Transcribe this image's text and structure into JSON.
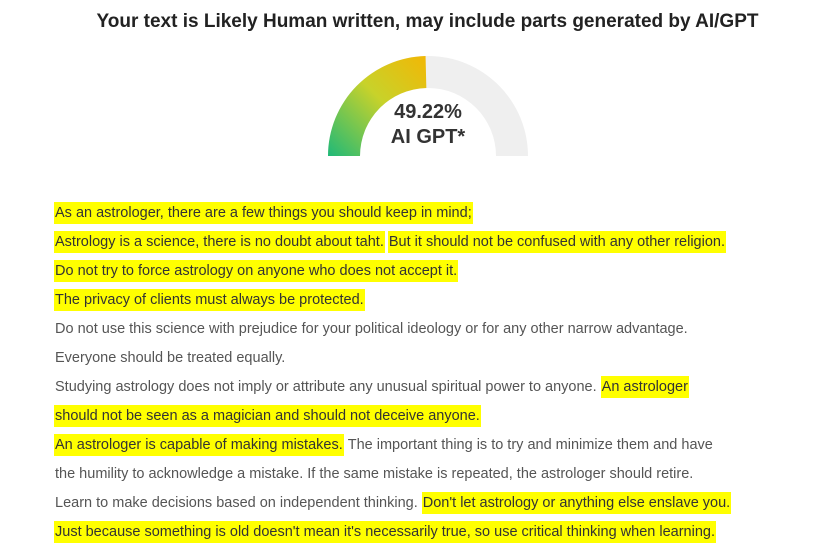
{
  "header": {
    "title": "Your text is Likely Human written, may include parts generated by AI/GPT"
  },
  "gauge": {
    "value": 49.22,
    "label": "49.22%",
    "caption": "AI GPT*",
    "range": [
      0,
      100
    ]
  },
  "lines": [
    [
      {
        "text": "As an astrologer, there are a few things you should keep in mind;",
        "highlighted": true
      }
    ],
    [
      {
        "text": "Astrology is a science, there is no doubt about taht.",
        "highlighted": true
      },
      {
        "text": "But it should not be confused with any other religion.",
        "highlighted": true
      }
    ],
    [
      {
        "text": "Do not try to force astrology on anyone who does not accept it.",
        "highlighted": true
      }
    ],
    [
      {
        "text": "The privacy of clients must always be protected.",
        "highlighted": true
      }
    ],
    [
      {
        "text": "Do not use this science with prejudice for your political ideology or for any other narrow advantage.",
        "highlighted": false
      }
    ],
    [
      {
        "text": "Everyone should be treated equally.",
        "highlighted": false
      }
    ],
    [
      {
        "text": "Studying astrology does not imply or attribute any unusual spiritual power to anyone.",
        "highlighted": false
      },
      {
        "text": "An astrologer",
        "highlighted": true
      }
    ],
    [
      {
        "text": "should not be seen as a magician and should not deceive anyone.",
        "highlighted": true
      }
    ],
    [
      {
        "text": "An astrologer is capable of making mistakes.",
        "highlighted": true
      },
      {
        "text": "The important thing is to try and minimize them and have",
        "highlighted": false
      }
    ],
    [
      {
        "text": "the humility to acknowledge a mistake. If the same mistake is repeated, the astrologer should retire.",
        "highlighted": false
      }
    ],
    [
      {
        "text": "Learn to make decisions based on independent thinking.",
        "highlighted": false
      },
      {
        "text": "Don't let astrology or anything else enslave you.",
        "highlighted": true
      }
    ],
    [
      {
        "text": "Just because something is old doesn't mean it's necessarily true, so use critical thinking when learning.",
        "highlighted": true
      }
    ]
  ]
}
